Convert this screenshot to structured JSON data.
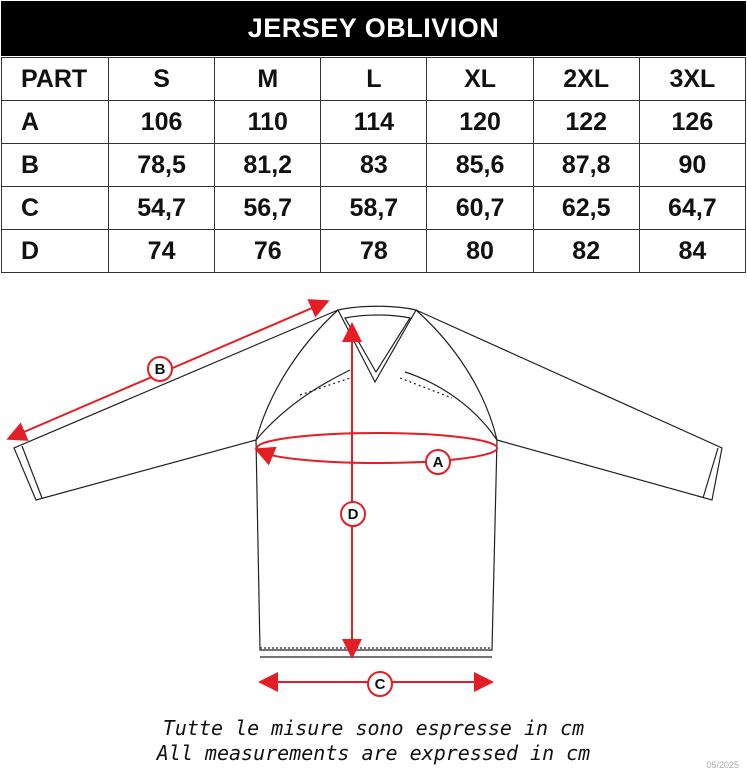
{
  "title": "JERSEY OBLIVION",
  "table": {
    "headers": [
      "PART",
      "S",
      "M",
      "L",
      "XL",
      "2XL",
      "3XL"
    ],
    "rows": [
      [
        "A",
        "106",
        "110",
        "114",
        "120",
        "122",
        "126"
      ],
      [
        "B",
        "78,5",
        "81,2",
        "83",
        "85,6",
        "87,8",
        "90"
      ],
      [
        "C",
        "54,7",
        "56,7",
        "58,7",
        "60,7",
        "62,5",
        "64,7"
      ],
      [
        "D",
        "74",
        "76",
        "78",
        "80",
        "82",
        "84"
      ]
    ]
  },
  "diagram": {
    "labels": {
      "a": "A",
      "b": "B",
      "c": "C",
      "d": "D"
    },
    "accent": "#e31e24"
  },
  "notes": {
    "it": "Tutte le misure sono espresse in cm",
    "en": "All measurements are expressed in cm"
  },
  "date": "05/2025"
}
